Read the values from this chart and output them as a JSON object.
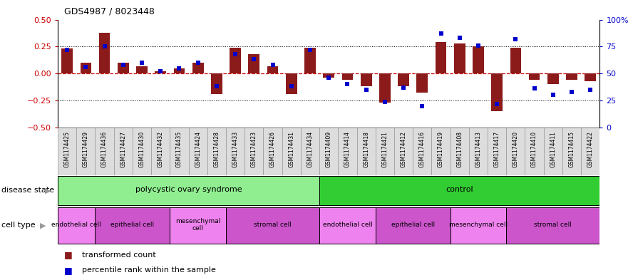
{
  "title": "GDS4987 / 8023448",
  "samples": [
    "GSM1174425",
    "GSM1174429",
    "GSM1174436",
    "GSM1174427",
    "GSM1174430",
    "GSM1174432",
    "GSM1174435",
    "GSM1174424",
    "GSM1174428",
    "GSM1174433",
    "GSM1174423",
    "GSM1174426",
    "GSM1174431",
    "GSM1174434",
    "GSM1174409",
    "GSM1174414",
    "GSM1174418",
    "GSM1174421",
    "GSM1174412",
    "GSM1174416",
    "GSM1174419",
    "GSM1174408",
    "GSM1174413",
    "GSM1174417",
    "GSM1174420",
    "GSM1174410",
    "GSM1174411",
    "GSM1174415",
    "GSM1174422"
  ],
  "bar_values": [
    0.23,
    0.1,
    0.38,
    0.1,
    0.07,
    0.02,
    0.05,
    0.1,
    -0.19,
    0.24,
    0.18,
    0.07,
    -0.19,
    0.24,
    -0.04,
    -0.06,
    -0.12,
    -0.27,
    -0.12,
    -0.18,
    0.29,
    0.28,
    0.25,
    -0.35,
    0.24,
    -0.06,
    -0.1,
    -0.06,
    -0.07
  ],
  "dot_values": [
    72,
    56,
    75,
    58,
    60,
    52,
    55,
    60,
    38,
    68,
    63,
    58,
    38,
    72,
    46,
    40,
    35,
    24,
    37,
    20,
    87,
    83,
    76,
    22,
    82,
    36,
    30,
    33,
    35
  ],
  "bar_color": "#8B1A1A",
  "dot_color": "#0000CC",
  "ylim": [
    -0.5,
    0.5
  ],
  "y2lim": [
    0,
    100
  ],
  "yticks": [
    -0.5,
    -0.25,
    0.0,
    0.25,
    0.5
  ],
  "y2ticks": [
    0,
    25,
    50,
    75,
    100
  ],
  "disease_state_groups": [
    {
      "label": "polycystic ovary syndrome",
      "start": 0,
      "end": 14,
      "color": "#90EE90"
    },
    {
      "label": "control",
      "start": 14,
      "end": 29,
      "color": "#32CD32"
    }
  ],
  "cell_type_groups": [
    {
      "label": "endothelial cell",
      "start": 0,
      "end": 2,
      "color": "#EE82EE"
    },
    {
      "label": "epithelial cell",
      "start": 2,
      "end": 6,
      "color": "#CC55CC"
    },
    {
      "label": "mesenchymal\ncell",
      "start": 6,
      "end": 9,
      "color": "#EE82EE"
    },
    {
      "label": "stromal cell",
      "start": 9,
      "end": 14,
      "color": "#CC55CC"
    },
    {
      "label": "endothelial cell",
      "start": 14,
      "end": 17,
      "color": "#EE82EE"
    },
    {
      "label": "epithelial cell",
      "start": 17,
      "end": 21,
      "color": "#CC55CC"
    },
    {
      "label": "mesenchymal cell",
      "start": 21,
      "end": 24,
      "color": "#EE82EE"
    },
    {
      "label": "stromal cell",
      "start": 24,
      "end": 29,
      "color": "#CC55CC"
    }
  ],
  "legend_items": [
    {
      "label": "transformed count",
      "color": "#8B1A1A"
    },
    {
      "label": "percentile rank within the sample",
      "color": "#0000CC"
    }
  ],
  "disease_state_label": "disease state",
  "cell_type_label": "cell type",
  "xticklabel_bg": "#DDDDDD",
  "fig_width": 8.81,
  "fig_height": 3.93,
  "dpi": 100
}
